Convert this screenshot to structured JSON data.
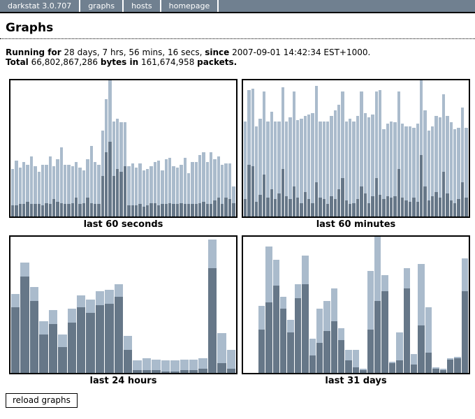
{
  "nav": {
    "brand": "darkstat 3.0.707",
    "tabs": [
      {
        "label": "graphs"
      },
      {
        "label": "hosts"
      },
      {
        "label": "homepage"
      }
    ]
  },
  "page": {
    "title": "Graphs"
  },
  "summary": {
    "running_for_label": "Running for",
    "uptime": "28 days, 7 hrs, 56 mins, 16 secs,",
    "since_label": "since",
    "start_time": "2007-09-01 14:42:34 EST+1000.",
    "total_label": "Total",
    "total_bytes": "66,802,867,286",
    "bytes_in_label": "bytes in",
    "total_packets": "161,674,958",
    "packets_label": "packets."
  },
  "reload_button_label": "reload graphs",
  "colors": {
    "bar_in_dark": "#667788",
    "bar_out_light": "#aabbcc",
    "nav_bg": "#708090",
    "nav_text": "#ffffff",
    "frame_border": "#000000"
  },
  "chart_data": [
    {
      "type": "bar",
      "stacked": true,
      "title": "last 60 seconds",
      "bar_count": 60,
      "xlabel": "",
      "ylabel": "",
      "ylim": [
        0,
        100
      ],
      "grid": false,
      "legend": "none",
      "unit": "percent of frame height (no numeric scale shown)",
      "series": [
        {
          "name": "in_dark",
          "values": [
            8,
            8,
            9,
            9,
            11,
            9,
            9,
            9,
            8,
            10,
            9,
            13,
            11,
            10,
            9,
            9,
            10,
            14,
            9,
            10,
            14,
            10,
            9,
            9,
            30,
            47,
            55,
            30,
            35,
            33,
            37,
            8,
            8,
            8,
            9,
            7,
            8,
            10,
            10,
            8,
            9,
            9,
            10,
            9,
            9,
            10,
            9,
            9,
            9,
            9,
            10,
            11,
            9,
            9,
            12,
            14,
            9,
            14,
            13,
            10
          ]
        },
        {
          "name": "out_light",
          "values": [
            27,
            33,
            27,
            31,
            27,
            35,
            28,
            24,
            30,
            28,
            35,
            24,
            31,
            41,
            29,
            29,
            27,
            26,
            27,
            24,
            28,
            42,
            31,
            29,
            33,
            39,
            45,
            40,
            37,
            36,
            32,
            29,
            31,
            28,
            30,
            27,
            27,
            27,
            30,
            33,
            25,
            33,
            33,
            28,
            27,
            28,
            34,
            23,
            31,
            31,
            35,
            36,
            31,
            38,
            30,
            30,
            29,
            25,
            26,
            12
          ]
        }
      ]
    },
    {
      "type": "bar",
      "stacked": true,
      "title": "last 60 minutes",
      "bar_count": 60,
      "xlabel": "",
      "ylabel": "",
      "ylim": [
        0,
        100
      ],
      "grid": false,
      "legend": "none",
      "unit": "percent of frame height (no numeric scale shown)",
      "series": [
        {
          "name": "in_dark",
          "values": [
            13,
            38,
            37,
            11,
            16,
            31,
            14,
            20,
            13,
            17,
            35,
            15,
            13,
            22,
            14,
            10,
            18,
            13,
            10,
            25,
            14,
            13,
            9,
            15,
            13,
            20,
            28,
            12,
            9,
            10,
            13,
            22,
            17,
            10,
            15,
            28,
            16,
            13,
            15,
            14,
            15,
            35,
            14,
            12,
            11,
            14,
            11,
            45,
            22,
            12,
            15,
            18,
            14,
            33,
            17,
            12,
            10,
            13,
            25,
            14
          ]
        },
        {
          "name": "out_light",
          "values": [
            57,
            55,
            57,
            55,
            56,
            61,
            56,
            57,
            57,
            53,
            60,
            55,
            60,
            70,
            57,
            62,
            56,
            62,
            66,
            71,
            56,
            57,
            61,
            59,
            65,
            62,
            64,
            58,
            63,
            60,
            61,
            70,
            59,
            63,
            60,
            64,
            77,
            51,
            53,
            56,
            54,
            57,
            54,
            54,
            55,
            51,
            57,
            55,
            56,
            51,
            51,
            56,
            59,
            57,
            57,
            57,
            54,
            52,
            55,
            51
          ]
        }
      ]
    },
    {
      "type": "bar",
      "stacked": true,
      "title": "last 24 hours",
      "bar_count": 24,
      "xlabel": "",
      "ylabel": "",
      "ylim": [
        0,
        100
      ],
      "grid": false,
      "legend": "none",
      "unit": "percent of frame height (no numeric scale shown)",
      "series": [
        {
          "name": "in_dark",
          "values": [
            48,
            71,
            53,
            28,
            36,
            19,
            37,
            48,
            44,
            50,
            51,
            56,
            17,
            2,
            2,
            2,
            1,
            1,
            2,
            2,
            3,
            77,
            7,
            3
          ]
        },
        {
          "name": "out_light",
          "values": [
            10,
            10,
            10,
            10,
            10,
            9,
            10,
            9,
            10,
            10,
            10,
            9,
            10,
            7,
            9,
            8,
            8,
            8,
            8,
            8,
            8,
            21,
            22,
            14
          ]
        }
      ]
    },
    {
      "type": "bar",
      "stacked": true,
      "title": "last 31 days",
      "bar_count": 31,
      "xlabel": "",
      "ylabel": "",
      "ylim": [
        0,
        100
      ],
      "grid": false,
      "legend": "none",
      "unit": "percent of frame height (no numeric scale shown); first two slots empty",
      "series": [
        {
          "name": "in_dark",
          "values": [
            0,
            0,
            32,
            52,
            64,
            47,
            30,
            55,
            65,
            13,
            22,
            31,
            38,
            24,
            9,
            4,
            2,
            32,
            53,
            60,
            7,
            9,
            62,
            6,
            35,
            15,
            3,
            2,
            10,
            11,
            60
          ]
        },
        {
          "name": "out_light",
          "values": [
            0,
            0,
            17,
            41,
            19,
            9,
            9,
            10,
            21,
            12,
            25,
            22,
            24,
            9,
            8,
            13,
            1,
            43,
            47,
            12,
            1,
            21,
            15,
            8,
            45,
            33,
            1,
            1,
            1,
            1,
            24
          ]
        }
      ]
    }
  ]
}
